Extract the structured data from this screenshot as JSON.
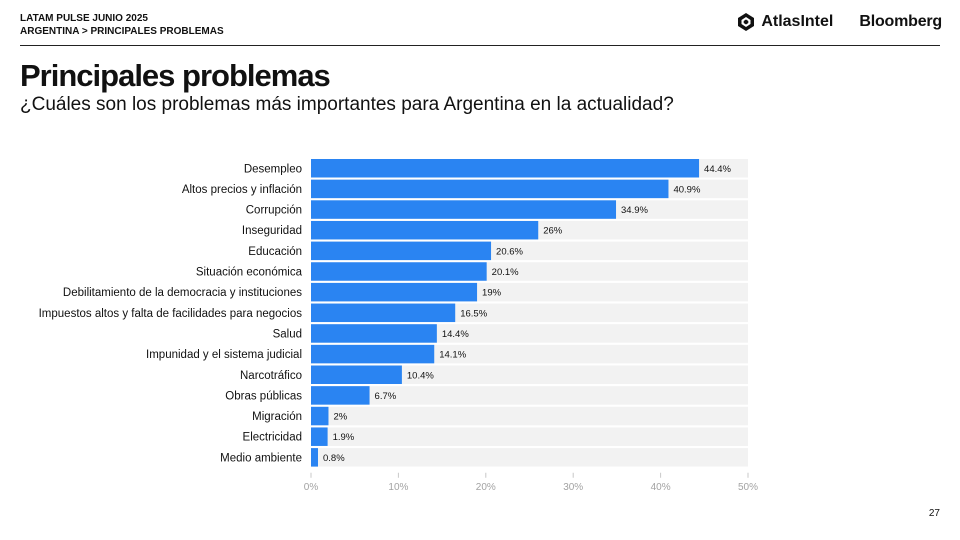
{
  "header": {
    "kicker": "LATAM PULSE JUNIO 2025",
    "breadcrumb": "ARGENTINA > PRINCIPALES PROBLEMAS",
    "atlas_logo": "AtlasIntel",
    "bloomberg_logo": "Bloomberg"
  },
  "title": "Principales problemas",
  "subtitle": "¿Cuáles son los problemas más importantes para Argentina en la actualidad?",
  "page_number": "27",
  "colors": {
    "bar": "#2a84f2",
    "track": "#f2f2f2",
    "axis_text": "#a3a3a3"
  },
  "chart_data": {
    "type": "bar",
    "orientation": "horizontal",
    "categories": [
      "Desempleo",
      "Altos precios y inflación",
      "Corrupción",
      "Inseguridad",
      "Educación",
      "Situación económica",
      "Debilitamiento de la democracia y instituciones",
      "Impuestos altos y falta de facilidades para negocios",
      "Salud",
      "Impunidad y el sistema judicial",
      "Narcotráfico",
      "Obras públicas",
      "Migración",
      "Electricidad",
      "Medio ambiente"
    ],
    "values": [
      44.4,
      40.9,
      34.9,
      26,
      20.6,
      20.1,
      19,
      16.5,
      14.4,
      14.1,
      10.4,
      6.7,
      2,
      1.9,
      0.8
    ],
    "value_labels": [
      "44.4%",
      "40.9%",
      "34.9%",
      "26%",
      "20.6%",
      "20.1%",
      "19%",
      "16.5%",
      "14.4%",
      "14.1%",
      "10.4%",
      "6.7%",
      "2%",
      "1.9%",
      "0.8%"
    ],
    "xlim": [
      0,
      50
    ],
    "xticks": [
      0,
      10,
      20,
      30,
      40,
      50
    ],
    "xtick_labels": [
      "0%",
      "10%",
      "20%",
      "30%",
      "40%",
      "50%"
    ],
    "grid": false,
    "legend": "none"
  }
}
